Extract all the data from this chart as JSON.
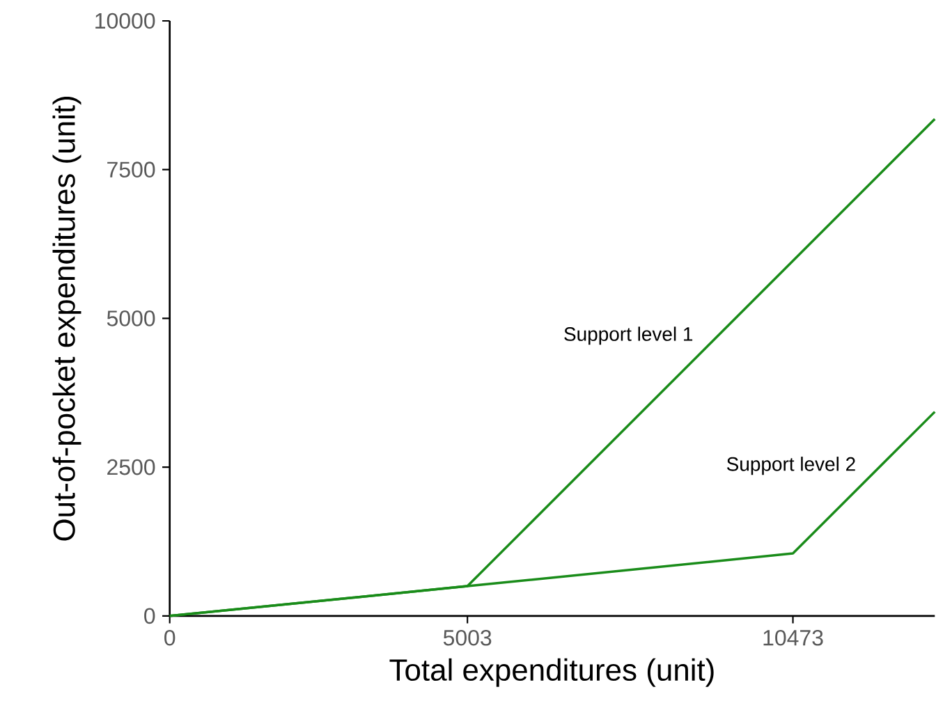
{
  "chart_data": {
    "type": "line",
    "xlabel": "Total expenditures (unit)",
    "ylabel": "Out-of-pocket expenditures (unit)",
    "series": [
      {
        "name": "Support level 1",
        "color": "#1a8c1a",
        "x": [
          0,
          5003,
          12857
        ],
        "values": [
          0,
          500,
          8350
        ]
      },
      {
        "name": "Support level 2",
        "color": "#1a8c1a",
        "x": [
          0,
          5003,
          10473,
          12857
        ],
        "values": [
          0,
          500,
          1050,
          3430
        ]
      }
    ],
    "xlim": [
      0,
      12857
    ],
    "ylim": [
      0,
      10000
    ],
    "xticks": [
      0,
      5003,
      10473
    ],
    "yticks": [
      0,
      2500,
      5000,
      7500,
      10000
    ],
    "grid": false,
    "legend": false,
    "marker": "none",
    "line_style": "solid"
  }
}
